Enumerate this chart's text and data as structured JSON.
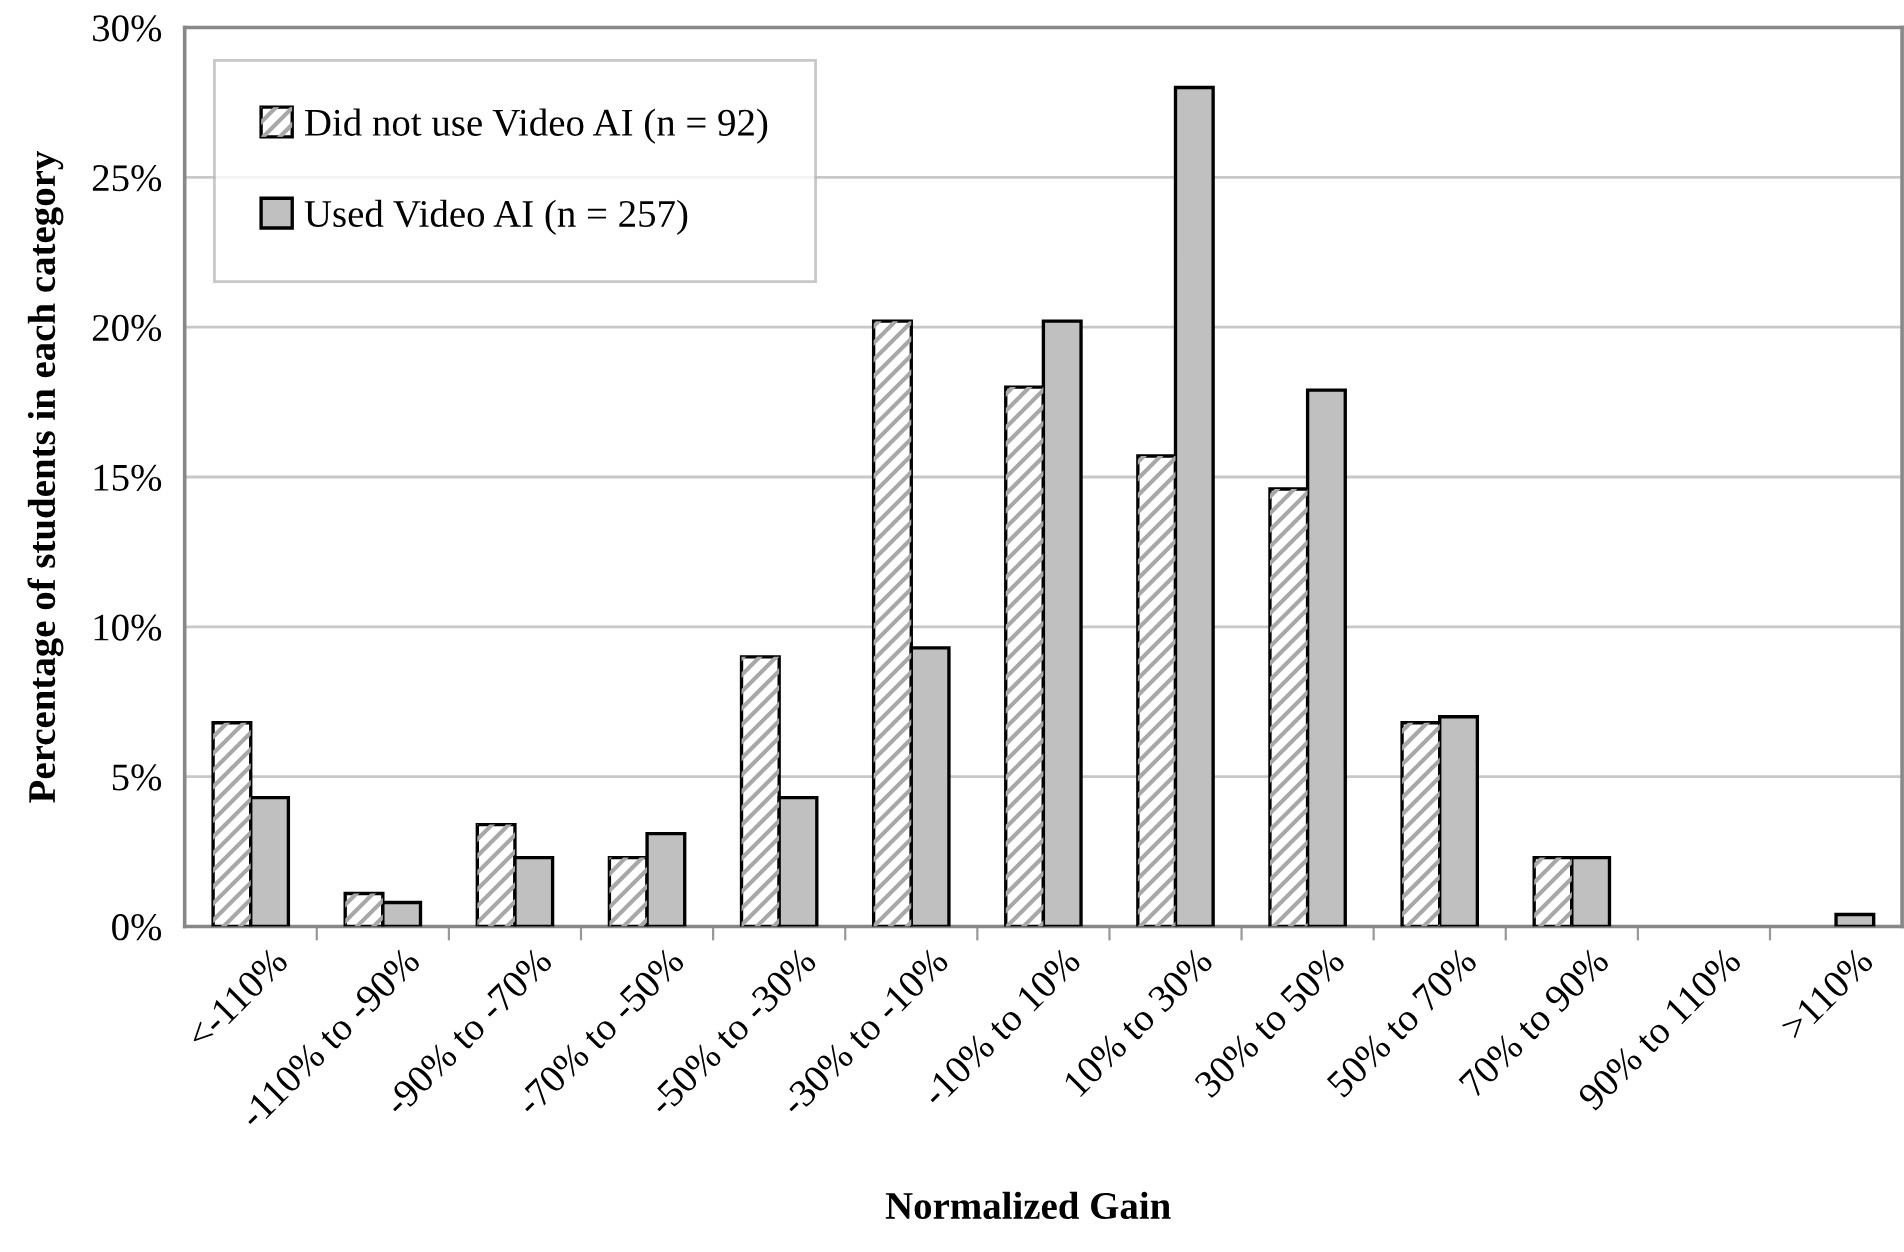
{
  "chart_data": {
    "type": "bar",
    "xlabel": "Normalized Gain",
    "ylabel": "Percentage of students in each category",
    "categories": [
      "<-110%",
      "-110% to -90%",
      "-90% to -70%",
      "-70% to -50%",
      "-50% to -30%",
      "-30% to -10%",
      "-10% to 10%",
      "10% to 30%",
      "30% to 50%",
      "50% to 70%",
      "70% to 90%",
      "90% to 110%",
      ">110%"
    ],
    "series": [
      {
        "name": "Did not use Video AI (n = 92)",
        "color": "#ffffff",
        "values": [
          6.8,
          1.1,
          3.4,
          2.3,
          9.0,
          20.2,
          18.0,
          15.7,
          14.6,
          6.8,
          2.3,
          0,
          0
        ]
      },
      {
        "name": "Used Video AI (n = 257)",
        "color": "#c0c0c0",
        "values": [
          4.3,
          0.8,
          2.3,
          3.1,
          4.3,
          9.3,
          20.2,
          28.0,
          17.9,
          7.0,
          2.3,
          0,
          0.4
        ]
      }
    ],
    "ylim": [
      0,
      30
    ],
    "yticks": [
      {
        "value": 0,
        "label": "0%"
      },
      {
        "value": 5,
        "label": "5%"
      },
      {
        "value": 10,
        "label": "10%"
      },
      {
        "value": 15,
        "label": "15%"
      },
      {
        "value": 20,
        "label": "20%"
      },
      {
        "value": 25,
        "label": "25%"
      },
      {
        "value": 30,
        "label": "30%"
      }
    ],
    "grid": "y",
    "legend": "top left"
  }
}
